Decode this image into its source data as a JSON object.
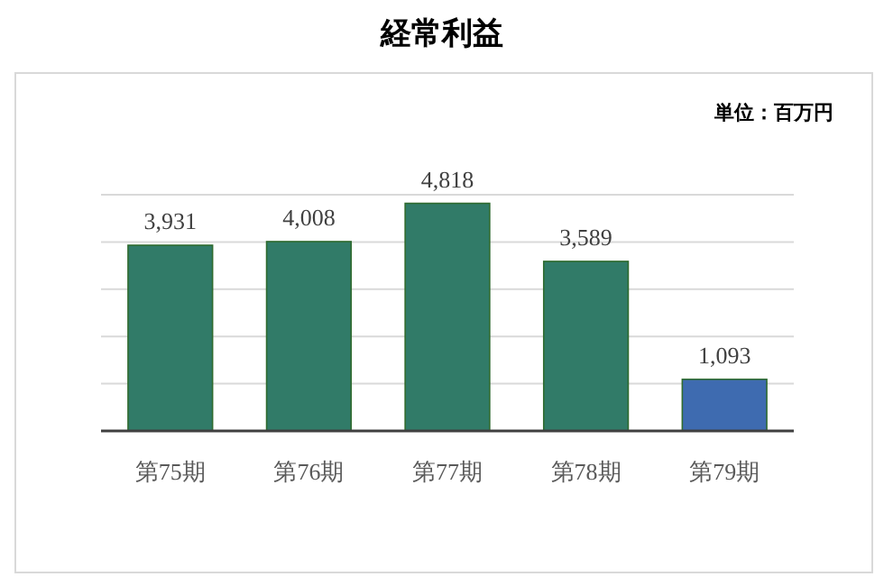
{
  "chart_data": {
    "type": "bar",
    "title": "経常利益",
    "annotations": [
      "単位：百万円"
    ],
    "categories": [
      "第75期",
      "第76期",
      "第77期",
      "第78期",
      "第79期"
    ],
    "values": [
      3931,
      4008,
      4818,
      3589,
      1093
    ],
    "colors": [
      "#317b68",
      "#317b68",
      "#317b68",
      "#317b68",
      "#3e6bb0"
    ],
    "value_labels": [
      "3,931",
      "4,008",
      "4,818",
      "3,589",
      "1,093"
    ],
    "grid": "y"
  }
}
